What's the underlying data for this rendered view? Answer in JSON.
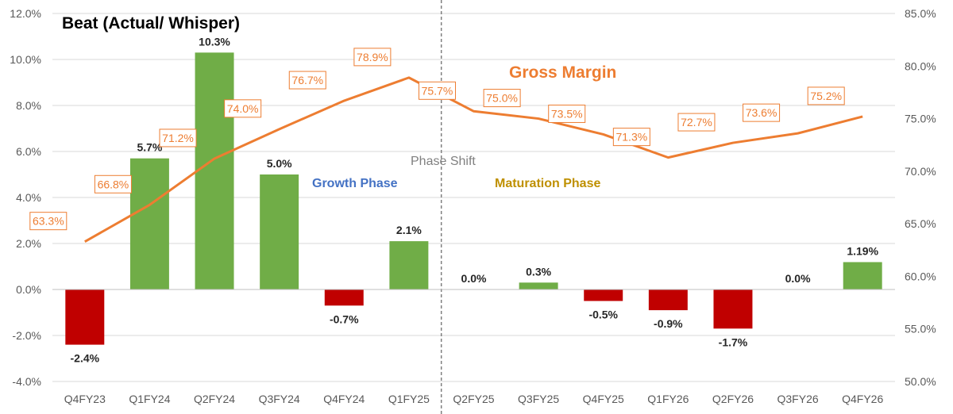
{
  "chart_data": {
    "type": "bar",
    "title": "Beat (Actual/ Whisper)",
    "categories": [
      "Q4FY23",
      "Q1FY24",
      "Q2FY24",
      "Q3FY24",
      "Q4FY24",
      "Q1FY25",
      "Q2FY25",
      "Q3FY25",
      "Q4FY25",
      "Q1FY26",
      "Q2FY26",
      "Q3FY26",
      "Q4FY26"
    ],
    "bar_series": {
      "values": [
        -2.4,
        5.7,
        10.3,
        5.0,
        -0.7,
        2.1,
        0.0,
        0.3,
        -0.5,
        -0.9,
        -1.7,
        0.0,
        1.19
      ],
      "labels": [
        "-2.4%",
        "5.7%",
        "10.3%",
        "5.0%",
        "-0.7%",
        "2.1%",
        "0.0%",
        "0.3%",
        "-0.5%",
        "-0.9%",
        "-1.7%",
        "0.0%",
        "1.19%"
      ],
      "positive_color": "#70AD47",
      "negative_color": "#C00000"
    },
    "line_series": {
      "name": "Gross Margin",
      "values": [
        63.3,
        66.8,
        71.2,
        74.0,
        76.7,
        78.9,
        75.7,
        75.0,
        73.5,
        71.3,
        72.7,
        73.6,
        75.2
      ],
      "labels": [
        "63.3%",
        "66.8%",
        "71.2%",
        "74.0%",
        "76.7%",
        "78.9%",
        "75.7%",
        "75.0%",
        "73.5%",
        "71.3%",
        "72.7%",
        "73.6%",
        "75.2%"
      ],
      "color": "#ED7D31"
    },
    "y_left": {
      "ylim": [
        -4.0,
        12.0
      ],
      "ticks": [
        12.0,
        10.0,
        8.0,
        6.0,
        4.0,
        2.0,
        0.0,
        -2.0,
        -4.0
      ],
      "tick_labels": [
        "12.0%",
        "10.0%",
        "8.0%",
        "6.0%",
        "4.0%",
        "2.0%",
        "0.0%",
        "-2.0%",
        "-4.0%"
      ]
    },
    "y_right": {
      "ylim": [
        50.0,
        85.0
      ],
      "ticks": [
        85.0,
        80.0,
        75.0,
        70.0,
        65.0,
        60.0,
        55.0,
        50.0
      ],
      "tick_labels": [
        "85.0%",
        "80.0%",
        "75.0%",
        "70.0%",
        "65.0%",
        "60.0%",
        "55.0%",
        "50.0%"
      ]
    },
    "grid": true,
    "annotations": {
      "growth_phase": "Growth Phase",
      "maturation_phase": "Maturation Phase",
      "phase_shift": "Phase Shift"
    },
    "phase_divider_between": [
      "Q1FY25",
      "Q2FY25"
    ]
  }
}
